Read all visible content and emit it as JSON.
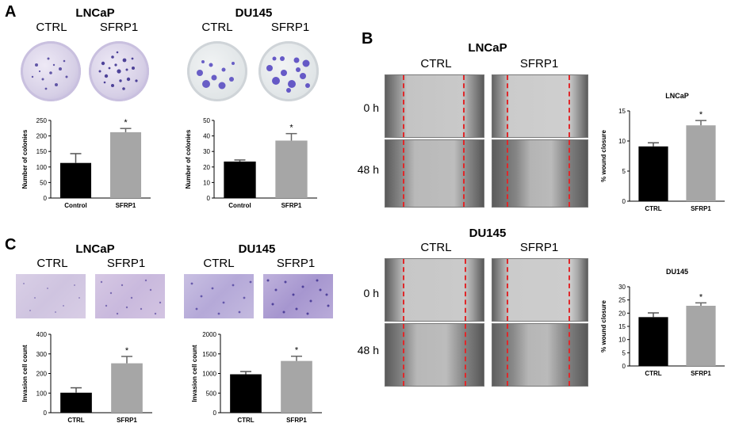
{
  "panels": {
    "A": {
      "letter": "A",
      "lncap_title": "LNCaP",
      "du145_title": "DU145",
      "lncap_cond": [
        "CTRL",
        "SFRP1"
      ],
      "du145_cond": [
        "CTRL",
        "SFRP1"
      ]
    },
    "B": {
      "letter": "B",
      "lncap_title": "LNCaP",
      "du145_title": "DU145",
      "lncap_cond": [
        "CTRL",
        "SFRP1"
      ],
      "du145_cond": [
        "CTRL",
        "SFRP1"
      ],
      "times": [
        "0 h",
        "48 h",
        "0 h",
        "48 h"
      ]
    },
    "C": {
      "letter": "C",
      "lncap_title": "LNCaP",
      "du145_title": "DU145",
      "lncap_cond": [
        "CTRL",
        "SFRP1"
      ],
      "du145_cond": [
        "CTRL",
        "SFRP1"
      ]
    }
  },
  "colors": {
    "ctrl_bar": "#000000",
    "sfrp1_bar": "#a6a6a6",
    "stain": "#5a4fb0",
    "wound_line": "#e0282a"
  },
  "chart_data": [
    {
      "id": "a-lncap",
      "type": "bar",
      "title": "",
      "ylabel": "Number of colonies",
      "categories": [
        "Control",
        "SFRP1"
      ],
      "values": [
        113,
        212
      ],
      "errors": [
        30,
        12
      ],
      "significance": [
        "",
        "*"
      ],
      "ylim": [
        0,
        250
      ],
      "yticks": [
        0,
        50,
        100,
        150,
        200,
        250
      ]
    },
    {
      "id": "a-du145",
      "type": "bar",
      "title": "",
      "ylabel": "Number of colonies",
      "categories": [
        "Control",
        "SFRP1"
      ],
      "values": [
        23.5,
        37
      ],
      "errors": [
        1,
        4.5
      ],
      "significance": [
        "",
        "*"
      ],
      "ylim": [
        0,
        50
      ],
      "yticks": [
        0,
        10,
        20,
        30,
        40,
        50
      ]
    },
    {
      "id": "b-lncap",
      "type": "bar",
      "title": "LNCaP",
      "ylabel": "% wound closure",
      "categories": [
        "CTRL",
        "SFRP1"
      ],
      "values": [
        9.1,
        12.6
      ],
      "errors": [
        0.6,
        0.8
      ],
      "significance": [
        "",
        "*"
      ],
      "ylim": [
        0,
        15
      ],
      "yticks": [
        0,
        5,
        10,
        15
      ]
    },
    {
      "id": "b-du145",
      "type": "bar",
      "title": "DU145",
      "ylabel": "% wound closure",
      "categories": [
        "CTRL",
        "SFRP1"
      ],
      "values": [
        18.5,
        22.8
      ],
      "errors": [
        1.6,
        1.1
      ],
      "significance": [
        "",
        "*"
      ],
      "ylim": [
        0,
        30
      ],
      "yticks": [
        0,
        5,
        10,
        15,
        20,
        25,
        30
      ]
    },
    {
      "id": "c-lncap",
      "type": "bar",
      "title": "",
      "ylabel": "Invasion cell count",
      "categories": [
        "CTRL",
        "SFRP1"
      ],
      "values": [
        102,
        252
      ],
      "errors": [
        25,
        35
      ],
      "significance": [
        "",
        "*"
      ],
      "ylim": [
        0,
        400
      ],
      "yticks": [
        0,
        100,
        200,
        300,
        400
      ]
    },
    {
      "id": "c-du145",
      "type": "bar",
      "title": "",
      "ylabel": "Invasion cell count",
      "categories": [
        "CTRL",
        "SFRP1"
      ],
      "values": [
        980,
        1320
      ],
      "errors": [
        70,
        120
      ],
      "significance": [
        "",
        "*"
      ],
      "ylim": [
        0,
        2000
      ],
      "yticks": [
        0,
        500,
        1000,
        1500,
        2000
      ]
    }
  ]
}
